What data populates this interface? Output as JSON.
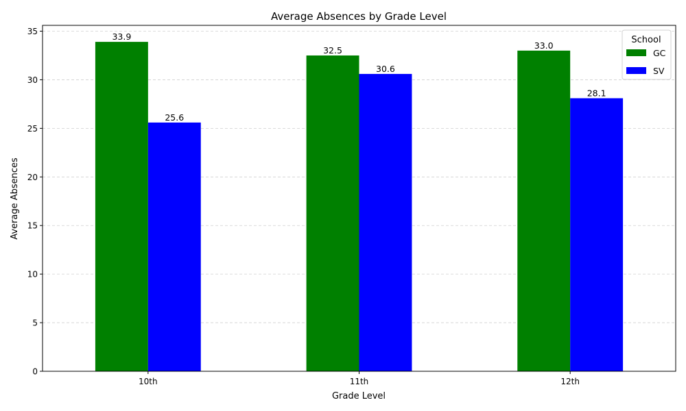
{
  "chart_data": {
    "type": "bar",
    "title": "Average Absences by Grade Level",
    "xlabel": "Grade Level",
    "ylabel": "Average Absences",
    "categories": [
      "10th",
      "11th",
      "12th"
    ],
    "series": [
      {
        "name": "GC",
        "color": "#008000",
        "values": [
          33.9,
          32.5,
          33.0
        ]
      },
      {
        "name": "SV",
        "color": "#0000ff",
        "values": [
          25.6,
          30.6,
          28.1
        ]
      }
    ],
    "ylim": [
      0,
      35.6
    ],
    "yticks": [
      0,
      5,
      10,
      15,
      20,
      25,
      30,
      35
    ],
    "grid": "y-dashed",
    "legend": {
      "title": "School",
      "placement": "top-right"
    }
  }
}
